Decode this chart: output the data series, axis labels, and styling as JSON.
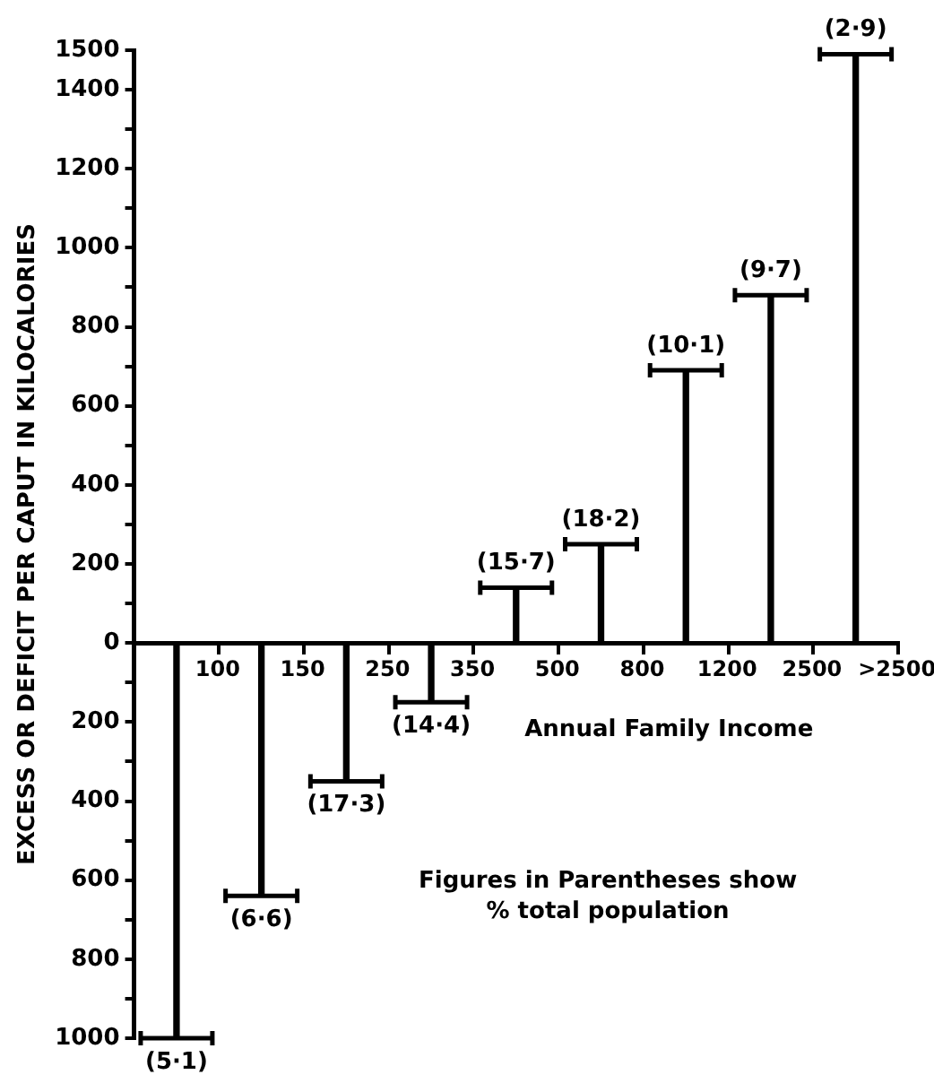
{
  "chart_data": {
    "type": "bar",
    "ylabel": "EXCESS OR DEFICIT PER CAPUT IN KILOCALORIES",
    "xlabel": "Annual Family Income",
    "categories": [
      "100",
      "150",
      "250",
      "350",
      "500",
      "800",
      "1200",
      "2500",
      ">2500"
    ],
    "values": [
      -1000,
      -640,
      -350,
      -150,
      140,
      250,
      690,
      880,
      1490
    ],
    "value_labels": [
      "(5·1)",
      "(6·6)",
      "(17·3)",
      "(14·4)",
      "(15·7)",
      "(18·2)",
      "(10·1)",
      "(9·7)",
      "(2·9)"
    ],
    "color": "#000000",
    "ylim": [
      -1000,
      1500
    ],
    "yticks": [
      {
        "value": -1000,
        "label": "1000"
      },
      {
        "value": -900,
        "label": null
      },
      {
        "value": -800,
        "label": "800"
      },
      {
        "value": -700,
        "label": null
      },
      {
        "value": -600,
        "label": "600"
      },
      {
        "value": -500,
        "label": null
      },
      {
        "value": -400,
        "label": "400"
      },
      {
        "value": -300,
        "label": null
      },
      {
        "value": -200,
        "label": "200"
      },
      {
        "value": -100,
        "label": null
      },
      0,
      {
        "value": 100,
        "label": null
      },
      200,
      {
        "value": 300,
        "label": null
      },
      400,
      {
        "value": 500,
        "label": null
      },
      600,
      {
        "value": 700,
        "label": null
      },
      800,
      {
        "value": 900,
        "label": null
      },
      1000,
      {
        "value": 1100,
        "label": null
      },
      1200,
      {
        "value": 1300,
        "label": null
      },
      1400,
      1500
    ],
    "grid": false,
    "legend": false,
    "annotations": [
      "Figures in Parentheses show % total population"
    ]
  }
}
